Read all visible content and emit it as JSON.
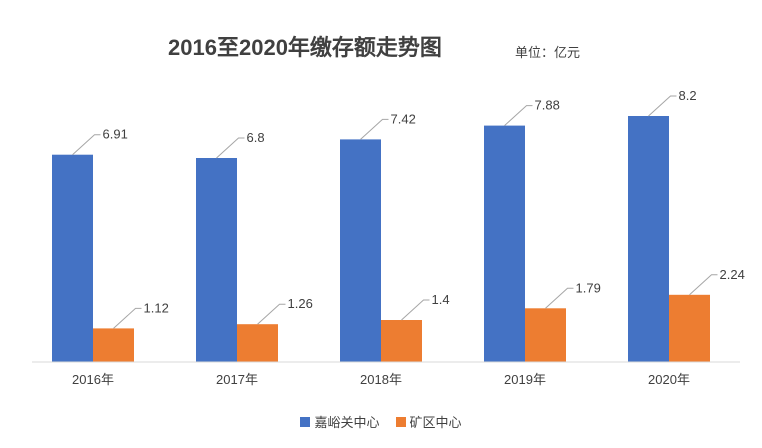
{
  "title": "2016至2020年缴存额走势图",
  "unit": "单位：亿元",
  "colors": {
    "series1": "#4472C4",
    "series2": "#ED7D31",
    "axis": "#d9d9d9",
    "text": "#404040",
    "leader": "#a6a6a6"
  },
  "chart_data": {
    "type": "bar",
    "title": "2016至2020年缴存额走势图",
    "categories": [
      "2016年",
      "2017年",
      "2018年",
      "2019年",
      "2020年"
    ],
    "series": [
      {
        "name": "嘉峪关中心",
        "values": [
          6.91,
          6.8,
          7.42,
          7.88,
          8.2
        ],
        "labels": [
          "6.91",
          "6.8",
          "7.42",
          "7.88",
          "8.2"
        ]
      },
      {
        "name": "矿区中心",
        "values": [
          1.12,
          1.26,
          1.4,
          1.79,
          2.24
        ],
        "labels": [
          "1.12",
          "1.26",
          "1.4",
          "1.79",
          "2.24"
        ]
      }
    ],
    "ylim": [
      0,
      10
    ],
    "grid": false,
    "legend_position": "bottom"
  }
}
